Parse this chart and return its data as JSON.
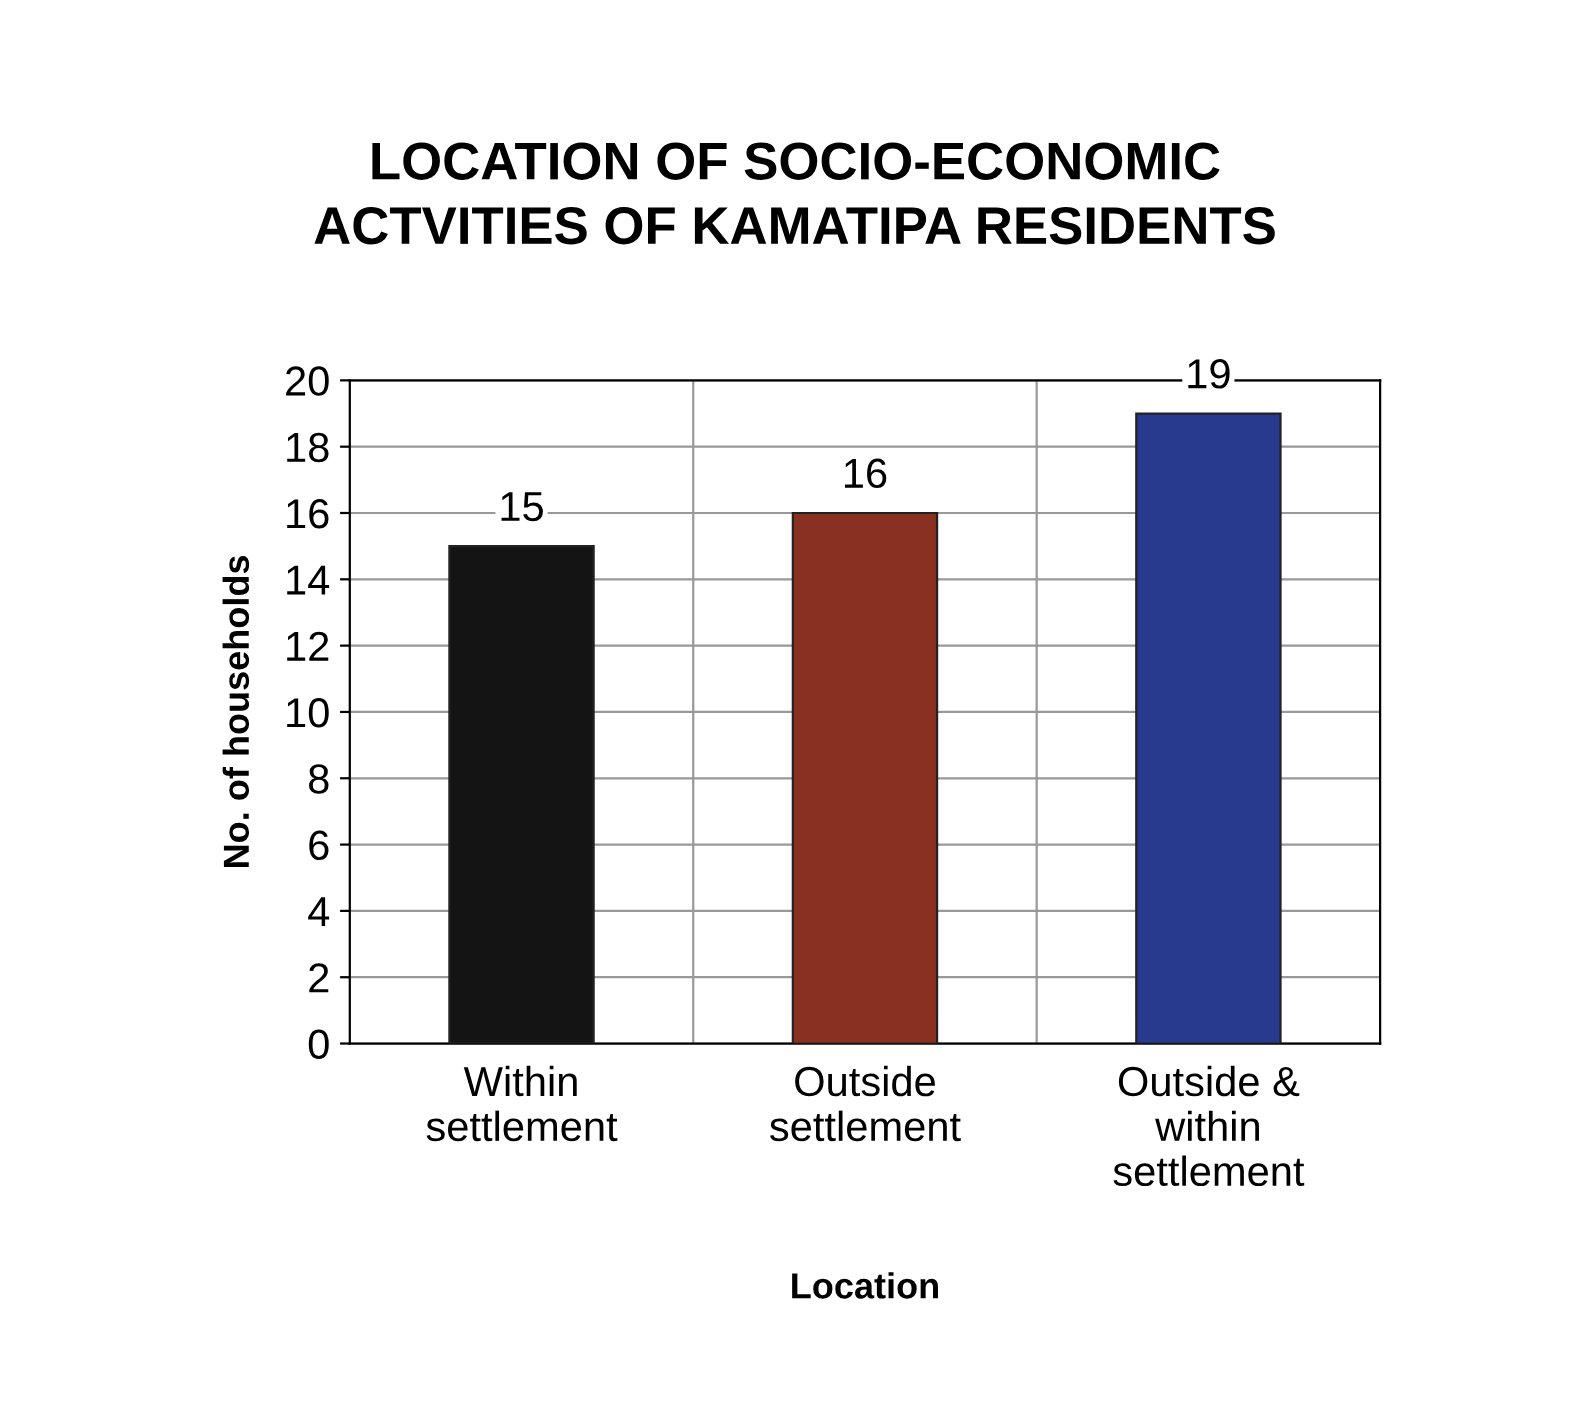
{
  "chart_data": {
    "type": "bar",
    "title": "LOCATION OF SOCIO-ECONOMIC\nACTVITIES OF KAMATIPA RESIDENTS",
    "xlabel": "Location",
    "ylabel": "No. of households",
    "categories": [
      "Within\nsettlement",
      "Outside\nsettlement",
      "Outside &\nwithin\nsettlement"
    ],
    "values": [
      15,
      16,
      19
    ],
    "colors": [
      "#141414",
      "#8a3020",
      "#283a8e"
    ],
    "ylim": [
      0,
      20
    ],
    "yticks": [
      0,
      2,
      4,
      6,
      8,
      10,
      12,
      14,
      16,
      18,
      20
    ],
    "grid": true,
    "data_labels": true
  }
}
